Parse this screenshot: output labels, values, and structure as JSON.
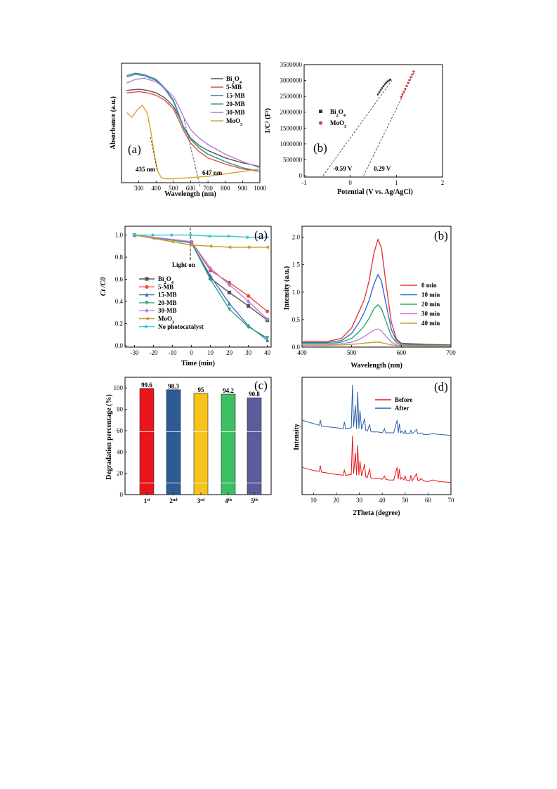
{
  "figures": {
    "fig1": {
      "a": {
        "panel_label": "(a)",
        "xlabel": "Wavelength (nm)",
        "ylabel": "Absorbance (a.u.)",
        "annotations": [
          "435 nm",
          "647 nm"
        ]
      },
      "b": {
        "panel_label": "(b)",
        "xlabel": "Potential (V vs. Ag/AgCl)",
        "ylabel": "1/C² (F²)",
        "annotations": [
          "-0.59 V",
          "0.29 V"
        ]
      }
    },
    "fig2": {
      "a": {
        "panel_label": "(a)",
        "xlabel": "Time (min)",
        "ylabel": "Ct /C0",
        "annotations": [
          "Light on"
        ]
      },
      "b": {
        "panel_label": "(b)",
        "xlabel": "Wavelength (nm)",
        "ylabel": "Intensity (a.u.)"
      },
      "c": {
        "panel_label": "(c)",
        "xlabel": "",
        "ylabel": "Degradation percentage (%)"
      },
      "d": {
        "panel_label": "(d)",
        "xlabel": "2Theta (degree)",
        "ylabel": "Intensity"
      }
    }
  },
  "chart_data": [
    {
      "id": "fig1a",
      "type": "line",
      "xlabel": "Wavelength (nm)",
      "ylabel": "Absorbance (a.u.)",
      "xlim": [
        200,
        1000
      ],
      "xticks": [
        300,
        400,
        500,
        600,
        700,
        800,
        900,
        1000
      ],
      "legend_position": "top-right",
      "grid": false,
      "series": [
        {
          "name": "Bi2O4",
          "color": "#555555",
          "x": [
            230,
            300,
            350,
            400,
            450,
            500,
            530,
            560,
            600,
            650,
            700,
            800,
            900,
            1000
          ],
          "y": [
            0.74,
            0.75,
            0.74,
            0.72,
            0.68,
            0.61,
            0.53,
            0.44,
            0.35,
            0.29,
            0.25,
            0.19,
            0.15,
            0.12
          ]
        },
        {
          "name": "5-MB",
          "color": "#e84a4a",
          "x": [
            230,
            300,
            350,
            400,
            450,
            500,
            530,
            560,
            600,
            650,
            700,
            800,
            900,
            1000
          ],
          "y": [
            0.72,
            0.73,
            0.72,
            0.7,
            0.66,
            0.59,
            0.5,
            0.41,
            0.31,
            0.24,
            0.19,
            0.14,
            0.1,
            0.08
          ]
        },
        {
          "name": "15-MB",
          "color": "#3f6fc4",
          "x": [
            230,
            280,
            330,
            400,
            450,
            500,
            530,
            560,
            600,
            650,
            700,
            800,
            900,
            1000
          ],
          "y": [
            0.86,
            0.88,
            0.87,
            0.83,
            0.76,
            0.66,
            0.55,
            0.44,
            0.34,
            0.27,
            0.22,
            0.16,
            0.11,
            0.08
          ]
        },
        {
          "name": "20-MB",
          "color": "#33a37a",
          "x": [
            230,
            280,
            330,
            400,
            450,
            500,
            530,
            560,
            600,
            650,
            700,
            800,
            900,
            1000
          ],
          "y": [
            0.85,
            0.87,
            0.86,
            0.82,
            0.75,
            0.65,
            0.54,
            0.43,
            0.34,
            0.27,
            0.22,
            0.16,
            0.11,
            0.08
          ]
        },
        {
          "name": "30-MB",
          "color": "#b77ad6",
          "x": [
            230,
            280,
            330,
            400,
            450,
            500,
            530,
            560,
            600,
            650,
            700,
            800,
            900,
            1000
          ],
          "y": [
            0.8,
            0.83,
            0.84,
            0.81,
            0.76,
            0.69,
            0.61,
            0.52,
            0.42,
            0.35,
            0.3,
            0.22,
            0.16,
            0.11
          ]
        },
        {
          "name": "MoO3",
          "color": "#d4a62a",
          "x": [
            230,
            260,
            290,
            320,
            350,
            370,
            390,
            410,
            430,
            450,
            500,
            600,
            700,
            800,
            900,
            1000
          ],
          "y": [
            0.56,
            0.52,
            0.58,
            0.62,
            0.55,
            0.4,
            0.22,
            0.08,
            0.03,
            0.02,
            0.02,
            0.03,
            0.04,
            0.06,
            0.08,
            0.1
          ]
        }
      ]
    },
    {
      "id": "fig1b",
      "type": "scatter",
      "xlabel": "Potential (V vs. Ag/AgCl)",
      "ylabel": "1/C² (F²)",
      "xlim": [
        -1,
        2
      ],
      "ylim": [
        0,
        3500000
      ],
      "xticks": [
        -1,
        0,
        1,
        2
      ],
      "yticks": [
        0,
        500000,
        1000000,
        1500000,
        2000000,
        2500000,
        3000000,
        3500000
      ],
      "legend_position": "middle-left",
      "grid": false,
      "series": [
        {
          "name": "Bi2O4",
          "color": "#333333",
          "x": [
            0.6,
            0.63,
            0.66,
            0.69,
            0.72,
            0.75,
            0.78,
            0.81,
            0.84,
            0.87
          ],
          "y": [
            2560000,
            2630000,
            2700000,
            2760000,
            2820000,
            2880000,
            2930000,
            2970000,
            3000000,
            3030000
          ]
        },
        {
          "name": "MoO3",
          "color": "#e23a3a",
          "x": [
            1.1,
            1.13,
            1.16,
            1.19,
            1.22,
            1.25,
            1.28,
            1.31,
            1.34,
            1.37
          ],
          "y": [
            2480000,
            2570000,
            2650000,
            2740000,
            2830000,
            2920000,
            3010000,
            3100000,
            3190000,
            3280000
          ]
        }
      ],
      "fits": [
        {
          "x": [
            -0.59,
            0.9
          ],
          "y": [
            0,
            3000000
          ]
        },
        {
          "x": [
            0.29,
            1.4
          ],
          "y": [
            0,
            3300000
          ]
        }
      ]
    },
    {
      "id": "fig2a",
      "type": "line",
      "xlabel": "Time (min)",
      "ylabel": "Ct /C0",
      "xlim": [
        -35,
        42
      ],
      "ylim": [
        0,
        1.08
      ],
      "xticks": [
        -30,
        -20,
        -10,
        0,
        10,
        20,
        30,
        40
      ],
      "yticks": [
        0.0,
        0.2,
        0.4,
        0.6,
        0.8,
        1.0
      ],
      "legend_position": "bottom-left",
      "grid": false,
      "series": [
        {
          "name": "Bi2O4",
          "color": "#555555",
          "marker": "square",
          "x": [
            -30,
            0,
            10,
            20,
            30,
            40
          ],
          "y": [
            1.0,
            0.93,
            0.61,
            0.48,
            0.36,
            0.23
          ]
        },
        {
          "name": "5-MB",
          "color": "#e84a4a",
          "marker": "circle",
          "x": [
            -30,
            0,
            10,
            20,
            30,
            40
          ],
          "y": [
            1.0,
            0.94,
            0.68,
            0.57,
            0.45,
            0.31
          ]
        },
        {
          "name": "15-MB",
          "color": "#3f6fc4",
          "marker": "triangle-up",
          "x": [
            -30,
            0,
            10,
            20,
            30,
            40
          ],
          "y": [
            1.0,
            0.93,
            0.63,
            0.38,
            0.18,
            0.05
          ]
        },
        {
          "name": "20-MB",
          "color": "#33a37a",
          "marker": "triangle-down",
          "x": [
            -30,
            0,
            10,
            20,
            30,
            40
          ],
          "y": [
            1.0,
            0.93,
            0.6,
            0.33,
            0.17,
            0.07
          ]
        },
        {
          "name": "30-MB",
          "color": "#b77ad6",
          "marker": "diamond",
          "x": [
            -30,
            0,
            10,
            20,
            30,
            40
          ],
          "y": [
            1.0,
            0.94,
            0.7,
            0.55,
            0.4,
            0.24
          ]
        },
        {
          "name": "MoO3",
          "color": "#c99a28",
          "marker": "triangle-left",
          "x": [
            -30,
            -20,
            -10,
            0,
            10,
            20,
            30,
            40
          ],
          "y": [
            1.0,
            0.97,
            0.94,
            0.91,
            0.9,
            0.89,
            0.89,
            0.89
          ]
        },
        {
          "name": "No photocatalyst",
          "color": "#2fc3d6",
          "marker": "triangle-right",
          "x": [
            -30,
            -20,
            -10,
            0,
            10,
            20,
            30,
            40
          ],
          "y": [
            1.0,
            1.0,
            1.0,
            1.0,
            0.99,
            0.99,
            0.98,
            0.98
          ]
        }
      ]
    },
    {
      "id": "fig2b",
      "type": "line",
      "xlabel": "Wavelength (nm)",
      "ylabel": "Intensity (a.u.)",
      "xlim": [
        400,
        700
      ],
      "ylim": [
        0,
        2.2
      ],
      "xticks": [
        400,
        500,
        600,
        700
      ],
      "yticks": [
        0.0,
        0.5,
        1.0,
        1.5,
        2.0
      ],
      "legend_position": "middle-right",
      "grid": false,
      "series": [
        {
          "name": "0 min",
          "color": "#e23a3a",
          "x": [
            400,
            450,
            480,
            500,
            515,
            525,
            535,
            545,
            553,
            560,
            570,
            580,
            590,
            600,
            650,
            700
          ],
          "y": [
            0.1,
            0.1,
            0.16,
            0.35,
            0.65,
            0.85,
            1.2,
            1.72,
            1.96,
            1.8,
            1.1,
            0.45,
            0.15,
            0.07,
            0.05,
            0.04
          ]
        },
        {
          "name": "10 min",
          "color": "#2f6fd0",
          "x": [
            400,
            450,
            480,
            500,
            515,
            525,
            535,
            545,
            553,
            560,
            570,
            580,
            590,
            600,
            650,
            700
          ],
          "y": [
            0.08,
            0.08,
            0.12,
            0.25,
            0.45,
            0.62,
            0.85,
            1.15,
            1.32,
            1.2,
            0.75,
            0.32,
            0.12,
            0.06,
            0.04,
            0.04
          ]
        },
        {
          "name": "20 min",
          "color": "#2aa85f",
          "x": [
            400,
            450,
            480,
            500,
            515,
            525,
            535,
            545,
            553,
            560,
            570,
            580,
            590,
            600,
            650,
            700
          ],
          "y": [
            0.06,
            0.06,
            0.09,
            0.16,
            0.28,
            0.38,
            0.52,
            0.7,
            0.77,
            0.7,
            0.45,
            0.2,
            0.08,
            0.04,
            0.03,
            0.03
          ]
        },
        {
          "name": "30 min",
          "color": "#c07ee0",
          "x": [
            400,
            450,
            480,
            500,
            515,
            525,
            535,
            545,
            553,
            560,
            570,
            580,
            590,
            600,
            650,
            700
          ],
          "y": [
            0.04,
            0.04,
            0.06,
            0.09,
            0.14,
            0.19,
            0.25,
            0.31,
            0.33,
            0.29,
            0.19,
            0.09,
            0.04,
            0.03,
            0.02,
            0.02
          ]
        },
        {
          "name": "40 min",
          "color": "#c9a02a",
          "x": [
            400,
            450,
            480,
            500,
            515,
            525,
            535,
            545,
            553,
            560,
            570,
            580,
            590,
            600,
            650,
            700
          ],
          "y": [
            0.03,
            0.03,
            0.04,
            0.05,
            0.06,
            0.07,
            0.08,
            0.09,
            0.09,
            0.08,
            0.06,
            0.04,
            0.03,
            0.02,
            0.02,
            0.02
          ]
        }
      ]
    },
    {
      "id": "fig2c",
      "type": "bar",
      "ylabel": "Degradation percentage (%)",
      "ylim": [
        0,
        110
      ],
      "yticks": [
        0,
        20,
        40,
        60,
        80,
        100
      ],
      "categories": [
        "1st",
        "2nd",
        "3rd",
        "4th",
        "5th"
      ],
      "categories_base": [
        "1",
        "2",
        "3",
        "4",
        "5"
      ],
      "categories_sup": [
        "st",
        "nd",
        "rd",
        "th",
        "th"
      ],
      "values": [
        99.6,
        98.3,
        95,
        94.2,
        90.8
      ],
      "value_labels": [
        "99.6",
        "98.3",
        "95",
        "94.2",
        "90.8"
      ],
      "colors": [
        "#e8161b",
        "#2e5b95",
        "#f7c31b",
        "#3cbf63",
        "#5e5b9b"
      ],
      "grid": false
    },
    {
      "id": "fig2d",
      "type": "line",
      "xlabel": "2Theta (degree)",
      "ylabel": "Intensity",
      "xlim": [
        5,
        70
      ],
      "xticks": [
        10,
        20,
        30,
        40,
        50,
        60,
        70
      ],
      "legend_position": "top-center",
      "grid": false,
      "series": [
        {
          "name": "Before",
          "color": "#e8161b",
          "offset": 0,
          "x": [
            5,
            10,
            12.5,
            13,
            13.5,
            20,
            23,
            23.5,
            24,
            26.5,
            27,
            27.5,
            28.3,
            28.8,
            29.3,
            29.8,
            30.3,
            31,
            32.3,
            32.8,
            33.5,
            34.5,
            35,
            35.5,
            38,
            40,
            41,
            41.5,
            43,
            45,
            46.5,
            47,
            47.5,
            48,
            48.5,
            49.5,
            50,
            50.5,
            52,
            52.5,
            53,
            54,
            55,
            55.5,
            56,
            57,
            58,
            60,
            62,
            65,
            70
          ],
          "y": [
            22,
            18,
            17,
            24,
            16,
            13,
            12,
            19,
            12,
            13,
            62,
            14,
            40,
            12,
            50,
            12,
            30,
            11,
            26,
            10,
            9,
            20,
            9,
            8,
            8,
            7,
            11,
            7,
            6,
            6,
            22,
            7,
            20,
            7,
            9,
            6,
            11,
            6,
            5,
            12,
            5,
            9,
            14,
            6,
            5,
            8,
            5,
            4,
            6,
            4,
            3
          ]
        },
        {
          "name": "After",
          "color": "#2a5fa8",
          "offset": 1,
          "x": [
            5,
            10,
            12.5,
            13,
            13.5,
            20,
            23,
            23.5,
            24,
            26.5,
            27,
            27.5,
            28.3,
            28.8,
            29.3,
            29.8,
            30.3,
            31,
            32.3,
            32.8,
            33.5,
            34.5,
            35,
            35.5,
            38,
            40,
            41,
            41.5,
            43,
            45,
            46.5,
            47,
            47.5,
            48,
            48.5,
            49.5,
            50,
            50.5,
            52,
            52.5,
            53,
            54,
            55,
            55.5,
            56,
            57,
            58,
            60,
            62,
            65,
            70
          ],
          "y": [
            20,
            16,
            14,
            20,
            13,
            11,
            10,
            18,
            10,
            11,
            62,
            12,
            38,
            10,
            54,
            10,
            32,
            9,
            22,
            8,
            7,
            15,
            7,
            6,
            6,
            5,
            10,
            5,
            5,
            5,
            20,
            5,
            16,
            5,
            7,
            4,
            8,
            4,
            4,
            8,
            4,
            6,
            9,
            4,
            4,
            5,
            3,
            3,
            4,
            3,
            2
          ]
        }
      ]
    }
  ]
}
